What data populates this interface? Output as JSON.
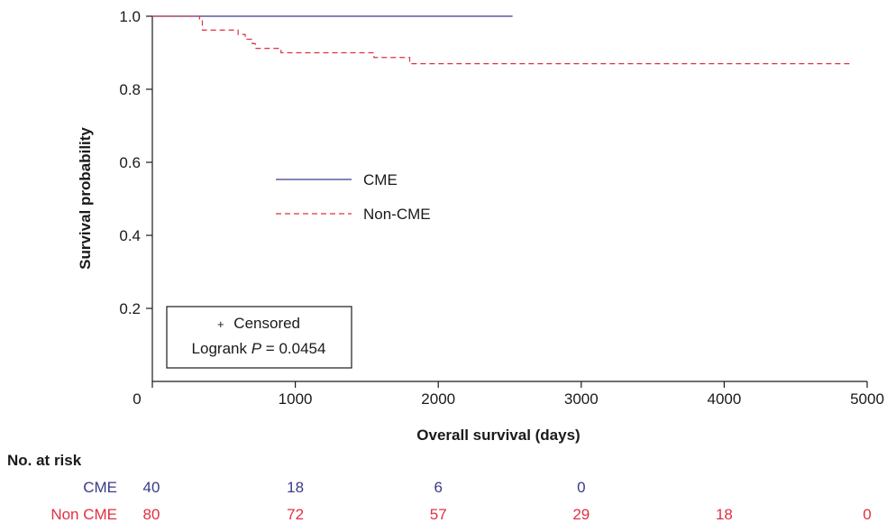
{
  "chart_data": {
    "type": "line",
    "xlabel": "Overall survival (days)",
    "ylabel": "Survival probability",
    "xlim": [
      0,
      5000
    ],
    "ylim": [
      0,
      1.0
    ],
    "x_ticks": [
      "0",
      "1000",
      "2000",
      "3000",
      "4000",
      "5000"
    ],
    "y_ticks": [
      "0.2",
      "0.4",
      "0.6",
      "0.8",
      "1.0"
    ],
    "grid": false,
    "legend_position": "center-left",
    "series": [
      {
        "name": "CME",
        "color": "#3a3a8c",
        "style": "solid",
        "x": [
          0,
          2520
        ],
        "y": [
          1.0,
          1.0
        ]
      },
      {
        "name": "Non-CME",
        "color": "#e03040",
        "style": "dashed",
        "x": [
          0,
          310,
          330,
          350,
          550,
          600,
          650,
          700,
          720,
          900,
          1550,
          1800,
          4900
        ],
        "y": [
          1.0,
          1.0,
          0.987,
          0.962,
          0.962,
          0.95,
          0.937,
          0.925,
          0.912,
          0.9,
          0.887,
          0.87,
          0.87
        ]
      }
    ],
    "annotation": {
      "censored_symbol": "+",
      "censored_label": "Censored",
      "logrank_prefix": "Logrank ",
      "logrank_p": "P",
      "logrank_value": "= 0.0454"
    },
    "risk_table": {
      "title": "No. at risk",
      "rows": [
        {
          "label": "CME",
          "color": "#3a3a8c",
          "values": [
            "40",
            "18",
            "6",
            "0"
          ]
        },
        {
          "label": "Non CME",
          "color": "#e03040",
          "values": [
            "80",
            "72",
            "57",
            "29",
            "18",
            "0"
          ]
        }
      ]
    }
  }
}
